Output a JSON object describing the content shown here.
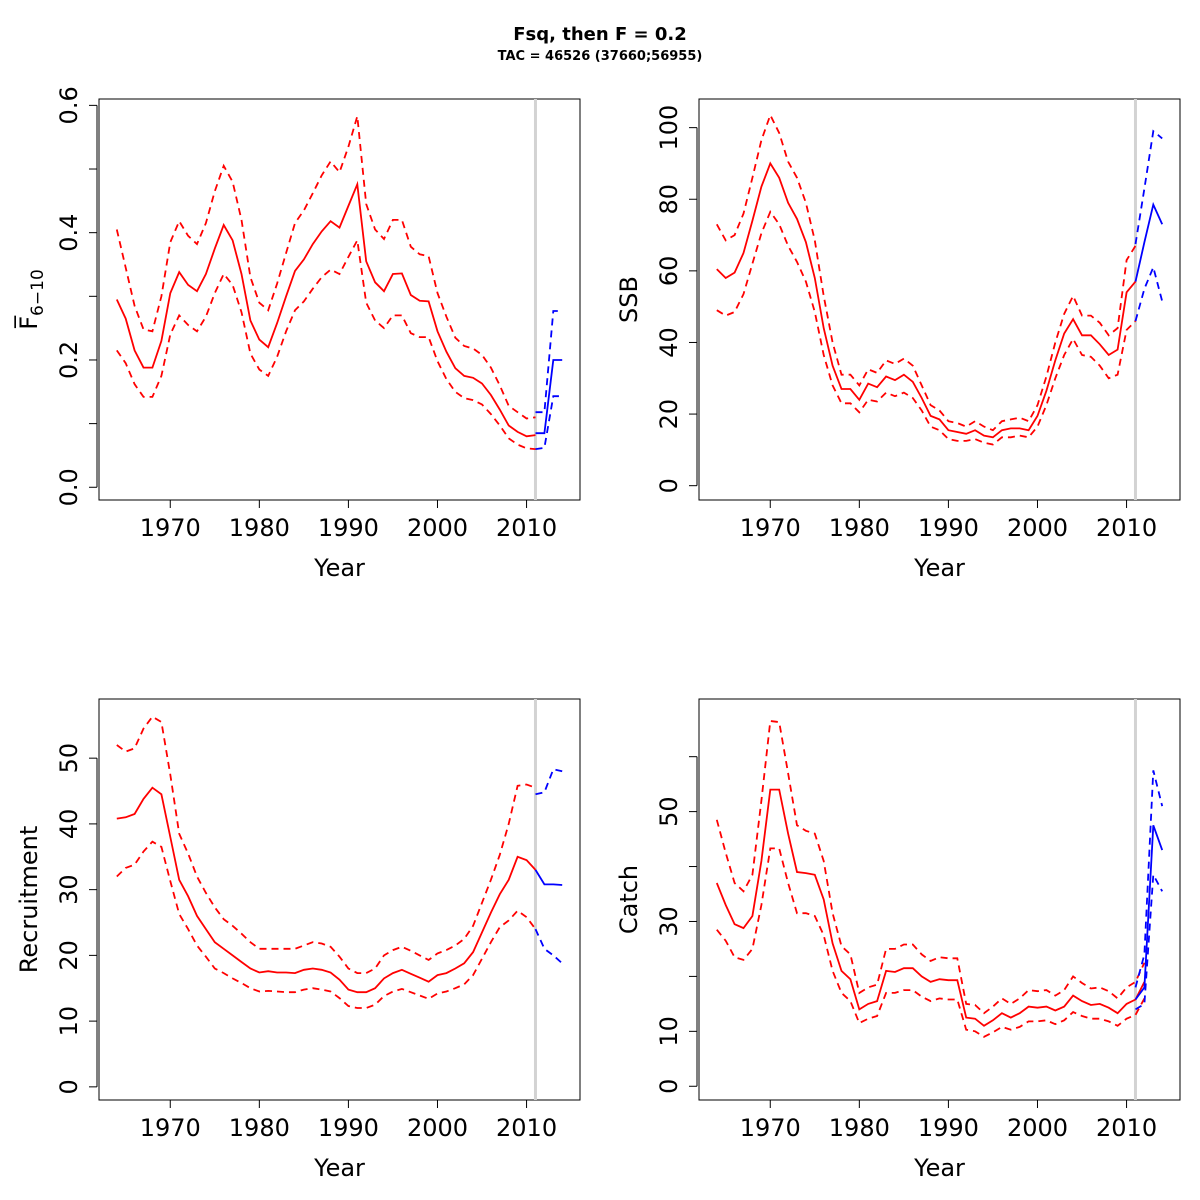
{
  "figure": {
    "title": "Fsq, then F = 0.2",
    "subtitle": "TAC = 46526 (37660;56955)"
  },
  "colors": {
    "historical": "#ff0000",
    "projection": "#0000ff",
    "current_year_line": "#d3d3d3"
  },
  "chart_data": [
    {
      "id": "fbar",
      "type": "line",
      "title": "",
      "xlabel": "Year",
      "ylabel": "F̅",
      "ylabel_sub": "6−10",
      "xlim": [
        1962,
        2016
      ],
      "ylim": [
        -0.02,
        0.61
      ],
      "xticks": [
        1970,
        1980,
        1990,
        2000,
        2010
      ],
      "yticks": [
        0.0,
        0.1,
        0.2,
        0.3,
        0.4,
        0.5,
        0.6
      ],
      "yticklabels": [
        "0.0",
        "",
        "0.2",
        "",
        "0.4",
        "",
        "0.6"
      ],
      "vline": 2011,
      "historical": {
        "x": [
          1964,
          1965,
          1966,
          1967,
          1968,
          1969,
          1970,
          1971,
          1972,
          1973,
          1974,
          1975,
          1976,
          1977,
          1978,
          1979,
          1980,
          1981,
          1982,
          1983,
          1984,
          1985,
          1986,
          1987,
          1988,
          1989,
          1990,
          1991,
          1992,
          1993,
          1994,
          1995,
          1996,
          1997,
          1998,
          1999,
          2000,
          2001,
          2002,
          2003,
          2004,
          2005,
          2006,
          2007,
          2008,
          2009,
          2010,
          2011
        ],
        "estimate": [
          0.295,
          0.265,
          0.215,
          0.188,
          0.188,
          0.23,
          0.305,
          0.338,
          0.318,
          0.308,
          0.335,
          0.375,
          0.412,
          0.388,
          0.335,
          0.262,
          0.232,
          0.22,
          0.258,
          0.3,
          0.34,
          0.358,
          0.382,
          0.402,
          0.418,
          0.408,
          0.442,
          0.476,
          0.355,
          0.322,
          0.308,
          0.335,
          0.336,
          0.302,
          0.293,
          0.292,
          0.245,
          0.213,
          0.187,
          0.175,
          0.172,
          0.163,
          0.145,
          0.122,
          0.097,
          0.087,
          0.08,
          0.082
        ],
        "upper": [
          0.405,
          0.345,
          0.285,
          0.248,
          0.245,
          0.3,
          0.385,
          0.418,
          0.395,
          0.382,
          0.415,
          0.465,
          0.505,
          0.48,
          0.42,
          0.33,
          0.29,
          0.278,
          0.32,
          0.368,
          0.415,
          0.435,
          0.462,
          0.49,
          0.512,
          0.495,
          0.535,
          0.583,
          0.445,
          0.405,
          0.39,
          0.42,
          0.42,
          0.378,
          0.366,
          0.363,
          0.305,
          0.268,
          0.235,
          0.222,
          0.218,
          0.208,
          0.188,
          0.16,
          0.128,
          0.118,
          0.108,
          0.11
        ],
        "lower": [
          0.215,
          0.195,
          0.162,
          0.142,
          0.142,
          0.175,
          0.24,
          0.27,
          0.255,
          0.245,
          0.268,
          0.305,
          0.335,
          0.318,
          0.275,
          0.21,
          0.185,
          0.175,
          0.205,
          0.245,
          0.278,
          0.292,
          0.312,
          0.33,
          0.342,
          0.335,
          0.362,
          0.388,
          0.29,
          0.262,
          0.25,
          0.27,
          0.27,
          0.242,
          0.236,
          0.236,
          0.198,
          0.17,
          0.15,
          0.14,
          0.137,
          0.13,
          0.115,
          0.097,
          0.077,
          0.067,
          0.061,
          0.06
        ]
      },
      "projection": {
        "x": [
          2011,
          2012,
          2013,
          2014
        ],
        "estimate": [
          0.085,
          0.085,
          0.2,
          0.2
        ],
        "upper": [
          0.118,
          0.118,
          0.277,
          0.277
        ],
        "lower": [
          0.06,
          0.062,
          0.143,
          0.143
        ]
      }
    },
    {
      "id": "ssb",
      "type": "line",
      "title": "",
      "xlabel": "Year",
      "ylabel": "SSB",
      "xlim": [
        1962,
        2016
      ],
      "ylim": [
        -4,
        108
      ],
      "xticks": [
        1970,
        1980,
        1990,
        2000,
        2010
      ],
      "yticks": [
        0,
        20,
        40,
        60,
        80,
        100
      ],
      "yticklabels": [
        "0",
        "20",
        "40",
        "60",
        "80",
        "100"
      ],
      "vline": 2011,
      "historical": {
        "x": [
          1964,
          1965,
          1966,
          1967,
          1968,
          1969,
          1970,
          1971,
          1972,
          1973,
          1974,
          1975,
          1976,
          1977,
          1978,
          1979,
          1980,
          1981,
          1982,
          1983,
          1984,
          1985,
          1986,
          1987,
          1988,
          1989,
          1990,
          1991,
          1992,
          1993,
          1994,
          1995,
          1996,
          1997,
          1998,
          1999,
          2000,
          2001,
          2002,
          2003,
          2004,
          2005,
          2006,
          2007,
          2008,
          2009,
          2010,
          2011
        ],
        "estimate": [
          60.5,
          58.0,
          59.5,
          65.0,
          74.0,
          83.5,
          90.0,
          86.0,
          79.0,
          74.5,
          68.0,
          58.0,
          44.0,
          33.5,
          27.0,
          27.0,
          24.0,
          28.5,
          27.5,
          30.5,
          29.5,
          31.0,
          29.0,
          24.5,
          19.5,
          18.5,
          15.5,
          15.0,
          14.5,
          15.5,
          14.0,
          13.5,
          15.5,
          16.0,
          16.0,
          15.5,
          19.5,
          26.5,
          35.0,
          42.5,
          46.5,
          42.0,
          42.0,
          39.5,
          36.5,
          38.0,
          54.0,
          57.0
        ],
        "upper": [
          73.0,
          68.5,
          70.0,
          76.0,
          86.0,
          96.5,
          103.5,
          98.5,
          90.5,
          86.0,
          79.0,
          68.5,
          53.0,
          40.0,
          31.0,
          31.0,
          28.0,
          32.5,
          31.5,
          35.0,
          34.0,
          35.5,
          33.5,
          28.0,
          22.5,
          21.0,
          18.0,
          17.5,
          16.5,
          18.0,
          16.5,
          15.5,
          18.0,
          18.5,
          19.0,
          18.0,
          22.5,
          30.5,
          40.0,
          48.0,
          53.0,
          47.5,
          47.5,
          45.5,
          42.0,
          44.0,
          63.0,
          67.0
        ],
        "lower": [
          49.0,
          47.5,
          48.5,
          53.5,
          62.0,
          70.5,
          76.5,
          73.0,
          67.0,
          62.5,
          57.0,
          48.5,
          36.5,
          28.0,
          23.0,
          23.0,
          20.5,
          24.0,
          23.5,
          26.0,
          25.0,
          26.0,
          24.5,
          21.0,
          16.5,
          15.5,
          13.0,
          12.5,
          12.5,
          13.0,
          12.0,
          11.5,
          13.5,
          13.5,
          14.0,
          13.5,
          16.5,
          22.5,
          30.0,
          36.5,
          41.0,
          36.5,
          36.0,
          33.5,
          30.0,
          31.0,
          43.5,
          46.0
        ]
      },
      "projection": {
        "x": [
          2011,
          2012,
          2013,
          2014
        ],
        "estimate": [
          57.0,
          68.0,
          78.5,
          73.0
        ],
        "upper": [
          67.5,
          83.0,
          99.0,
          97.0
        ],
        "lower": [
          46.0,
          55.0,
          61.0,
          51.5
        ]
      }
    },
    {
      "id": "recruitment",
      "type": "line",
      "title": "",
      "xlabel": "Year",
      "ylabel": "Recruitment",
      "xlim": [
        1962,
        2016
      ],
      "ylim": [
        -2,
        59
      ],
      "xticks": [
        1970,
        1980,
        1990,
        2000,
        2010
      ],
      "yticks": [
        0,
        10,
        20,
        30,
        40,
        50
      ],
      "yticklabels": [
        "0",
        "10",
        "20",
        "30",
        "40",
        "50"
      ],
      "vline": 2011,
      "historical": {
        "x": [
          1964,
          1965,
          1966,
          1967,
          1968,
          1969,
          1970,
          1971,
          1972,
          1973,
          1974,
          1975,
          1976,
          1977,
          1978,
          1979,
          1980,
          1981,
          1982,
          1983,
          1984,
          1985,
          1986,
          1987,
          1988,
          1989,
          1990,
          1991,
          1992,
          1993,
          1994,
          1995,
          1996,
          1997,
          1998,
          1999,
          2000,
          2001,
          2002,
          2003,
          2004,
          2005,
          2006,
          2007,
          2008,
          2009,
          2010,
          2011
        ],
        "estimate": [
          40.8,
          41.0,
          41.5,
          43.8,
          45.5,
          44.5,
          38.0,
          31.5,
          29.0,
          26.0,
          24.0,
          22.0,
          21.0,
          20.0,
          19.0,
          18.0,
          17.4,
          17.6,
          17.4,
          17.4,
          17.3,
          17.8,
          18.0,
          17.8,
          17.4,
          16.3,
          14.8,
          14.4,
          14.4,
          15.0,
          16.5,
          17.3,
          17.8,
          17.2,
          16.6,
          16.0,
          17.0,
          17.3,
          18.0,
          18.8,
          20.5,
          23.5,
          26.5,
          29.3,
          31.5,
          35.0,
          34.5,
          33.0
        ],
        "upper": [
          52.0,
          51.0,
          51.5,
          54.5,
          56.3,
          55.5,
          47.5,
          38.5,
          35.5,
          32.0,
          29.5,
          27.3,
          25.5,
          24.5,
          23.3,
          22.0,
          21.0,
          21.0,
          21.0,
          21.0,
          21.0,
          21.5,
          22.0,
          21.8,
          21.3,
          19.8,
          18.0,
          17.3,
          17.3,
          18.0,
          20.0,
          20.8,
          21.3,
          20.7,
          20.0,
          19.3,
          20.3,
          20.8,
          21.5,
          22.5,
          24.5,
          28.0,
          31.5,
          35.3,
          40.0,
          45.8,
          46.0,
          45.5
        ],
        "lower": [
          32.0,
          33.3,
          33.8,
          35.8,
          37.3,
          36.5,
          31.3,
          26.3,
          24.0,
          21.5,
          19.8,
          18.0,
          17.3,
          16.5,
          15.8,
          15.0,
          14.5,
          14.6,
          14.5,
          14.4,
          14.4,
          14.8,
          15.0,
          14.8,
          14.5,
          13.5,
          12.3,
          12.0,
          12.0,
          12.5,
          13.8,
          14.5,
          14.9,
          14.4,
          13.9,
          13.4,
          14.2,
          14.5,
          15.0,
          15.6,
          17.0,
          19.5,
          22.0,
          24.3,
          25.3,
          26.8,
          25.8,
          24.0
        ]
      },
      "projection": {
        "x": [
          2011,
          2012,
          2013,
          2014
        ],
        "estimate": [
          33.0,
          30.8,
          30.8,
          30.7
        ],
        "upper": [
          44.5,
          44.8,
          48.3,
          48.0
        ],
        "lower": [
          24.0,
          21.0,
          20.0,
          18.8
        ]
      }
    },
    {
      "id": "catch",
      "type": "line",
      "title": "",
      "xlabel": "Year",
      "ylabel": "Catch",
      "xlim": [
        1962,
        2016
      ],
      "ylim": [
        -2.5,
        70.5
      ],
      "xticks": [
        1970,
        1980,
        1990,
        2000,
        2010
      ],
      "yticks": [
        0,
        10,
        20,
        30,
        40,
        50,
        60
      ],
      "yticklabels": [
        "0",
        "10",
        "",
        "30",
        "",
        "50",
        ""
      ],
      "vline": 2011,
      "historical": {
        "x": [
          1964,
          1965,
          1966,
          1967,
          1968,
          1969,
          1970,
          1971,
          1972,
          1973,
          1974,
          1975,
          1976,
          1977,
          1978,
          1979,
          1980,
          1981,
          1982,
          1983,
          1984,
          1985,
          1986,
          1987,
          1988,
          1989,
          1990,
          1991,
          1992,
          1993,
          1994,
          1995,
          1996,
          1997,
          1998,
          1999,
          2000,
          2001,
          2002,
          2003,
          2004,
          2005,
          2006,
          2007,
          2008,
          2009,
          2010,
          2011,
          2012
        ],
        "estimate": [
          37.0,
          33.0,
          29.5,
          28.8,
          31.0,
          41.0,
          54.0,
          54.0,
          46.0,
          39.0,
          38.8,
          38.5,
          34.0,
          26.0,
          21.0,
          19.5,
          14.0,
          15.0,
          15.5,
          21.0,
          20.8,
          21.5,
          21.5,
          20.0,
          19.0,
          19.5,
          19.3,
          19.3,
          12.5,
          12.3,
          11.0,
          12.0,
          13.3,
          12.5,
          13.3,
          14.5,
          14.3,
          14.5,
          13.8,
          14.5,
          16.5,
          15.5,
          14.8,
          15.0,
          14.3,
          13.3,
          15.0,
          15.8,
          19.0
        ],
        "upper": [
          48.5,
          42.5,
          37.0,
          35.5,
          38.5,
          52.0,
          66.5,
          66.3,
          57.0,
          47.5,
          46.5,
          46.0,
          41.0,
          31.5,
          25.5,
          24.0,
          17.0,
          18.0,
          18.5,
          25.0,
          25.0,
          25.8,
          25.8,
          24.0,
          22.8,
          23.5,
          23.3,
          23.3,
          15.0,
          14.8,
          13.3,
          14.5,
          16.0,
          15.0,
          16.0,
          17.5,
          17.3,
          17.5,
          16.5,
          17.5,
          20.0,
          18.8,
          17.8,
          18.0,
          17.3,
          16.0,
          18.0,
          19.0,
          22.5
        ],
        "lower": [
          28.5,
          26.5,
          23.5,
          23.0,
          25.0,
          33.0,
          43.3,
          43.3,
          37.0,
          31.5,
          31.5,
          31.0,
          27.5,
          21.0,
          17.0,
          15.5,
          11.5,
          12.3,
          12.8,
          17.0,
          17.0,
          17.5,
          17.5,
          16.3,
          15.5,
          16.0,
          15.8,
          15.8,
          10.3,
          10.0,
          9.0,
          9.8,
          10.8,
          10.3,
          10.8,
          11.8,
          11.8,
          12.0,
          11.3,
          12.0,
          13.5,
          12.8,
          12.3,
          12.3,
          11.8,
          11.0,
          12.3,
          13.0,
          16.0
        ]
      },
      "projection": {
        "x": [
          2011,
          2012,
          2013,
          2014
        ],
        "estimate": [
          15.8,
          18.0,
          47.5,
          43.0
        ],
        "upper": [
          18.0,
          24.0,
          57.5,
          51.0
        ],
        "lower": [
          14.0,
          15.0,
          38.5,
          35.5
        ]
      }
    }
  ]
}
